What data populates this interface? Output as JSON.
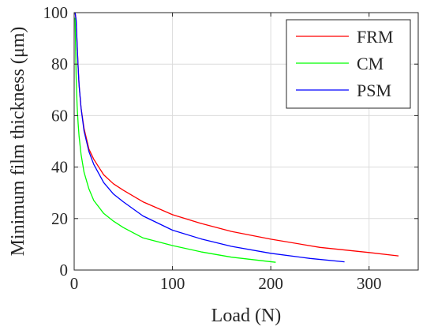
{
  "chart_data": {
    "type": "line",
    "title": "",
    "xlabel": "Load (N)",
    "ylabel": "Minimum film thickness (μm)",
    "xlim": [
      0,
      350
    ],
    "ylim": [
      0,
      100
    ],
    "xticks": [
      0,
      100,
      200,
      300
    ],
    "yticks": [
      0,
      20,
      40,
      60,
      80,
      100
    ],
    "grid": true,
    "legend_position": "top-right",
    "series": [
      {
        "name": "FRM",
        "color": "#ff0000",
        "x": [
          1,
          2,
          3,
          4,
          5,
          7,
          10,
          15,
          20,
          30,
          40,
          50,
          70,
          100,
          130,
          160,
          200,
          250,
          300,
          330
        ],
        "y": [
          100,
          97,
          88,
          79,
          72,
          63,
          55,
          47,
          43,
          37,
          33.5,
          31,
          26.5,
          21.5,
          18,
          15,
          12,
          8.8,
          6.8,
          5.5
        ]
      },
      {
        "name": "CM",
        "color": "#00ff00",
        "x": [
          1,
          1.5,
          2,
          3,
          4,
          5,
          7,
          10,
          15,
          20,
          30,
          40,
          50,
          70,
          100,
          130,
          160,
          205
        ],
        "y": [
          98,
          85,
          75,
          64,
          57,
          52,
          45,
          38,
          31.5,
          27,
          22,
          19,
          16.5,
          12.5,
          9.5,
          7,
          5,
          3
        ]
      },
      {
        "name": "PSM",
        "color": "#0000ff",
        "x": [
          1,
          2,
          3,
          4,
          5,
          7,
          10,
          15,
          20,
          30,
          40,
          50,
          70,
          100,
          130,
          160,
          200,
          240,
          275
        ],
        "y": [
          100,
          97,
          88,
          79,
          72,
          63,
          54,
          46,
          41,
          34,
          29.5,
          26.5,
          21,
          15.5,
          12,
          9.2,
          6.5,
          4.5,
          3.2
        ]
      }
    ]
  }
}
